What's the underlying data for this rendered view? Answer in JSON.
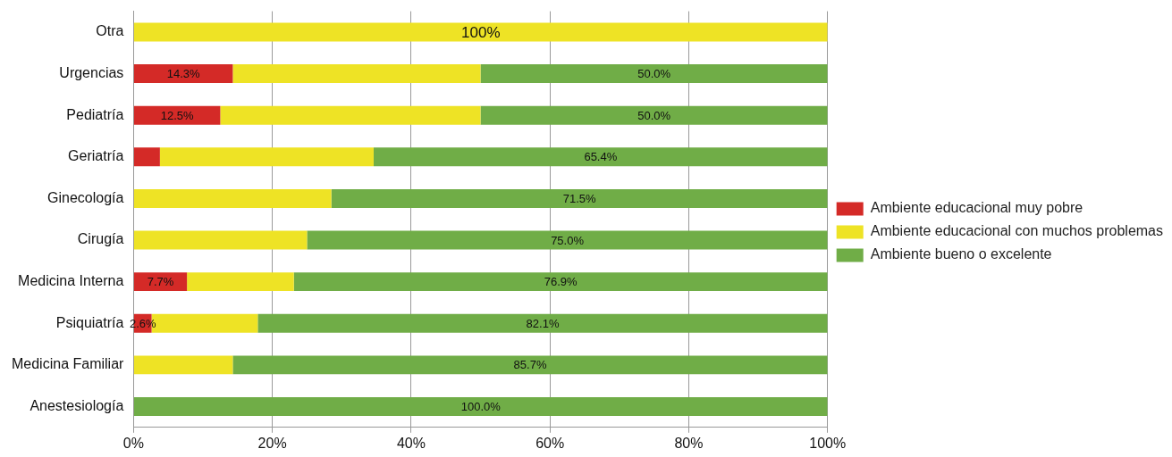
{
  "chart_data": {
    "type": "bar",
    "orientation": "horizontal",
    "stacked": true,
    "categories": [
      "Otra",
      "Urgencias",
      "Pediatría",
      "Geriatría",
      "Ginecología",
      "Cirugía",
      "Medicina Interna",
      "Psiquiatría",
      "Medicina Familiar",
      "Anestesiología"
    ],
    "series": [
      {
        "name": "Ambiente educacional muy pobre",
        "color": "#d42a27",
        "values": [
          null,
          14.3,
          12.5,
          3.8,
          null,
          null,
          7.7,
          2.6,
          null,
          null
        ],
        "value_labels": [
          null,
          "14.3%",
          "12.5%",
          null,
          null,
          null,
          "7.7%",
          "2.6%",
          null,
          null
        ]
      },
      {
        "name": "Ambiente educacional con muchos problemas",
        "color": "#eee325",
        "values": [
          100,
          35.7,
          37.5,
          30.8,
          28.5,
          25.0,
          15.4,
          15.3,
          14.3,
          null
        ],
        "value_labels": [
          "100%",
          null,
          null,
          null,
          null,
          null,
          null,
          null,
          null,
          null
        ]
      },
      {
        "name": "Ambiente bueno o excelente",
        "color": "#70ad47",
        "values": [
          null,
          50.0,
          50.0,
          65.4,
          71.5,
          75.0,
          76.9,
          82.1,
          85.7,
          100.0
        ],
        "value_labels": [
          null,
          "50.0%",
          "50.0%",
          "65.4%",
          "71.5%",
          "75.0%",
          "76.9%",
          "82.1%",
          "85.7%",
          "100.0%"
        ]
      }
    ],
    "xlim": [
      0,
      100
    ],
    "xticks": [
      {
        "value": 0,
        "label": "0%"
      },
      {
        "value": 20,
        "label": "20%"
      },
      {
        "value": 40,
        "label": "40%"
      },
      {
        "value": 60,
        "label": "60%"
      },
      {
        "value": 80,
        "label": "80%"
      },
      {
        "value": 100,
        "label": "100%"
      }
    ],
    "grid": "x",
    "legend": "right"
  }
}
